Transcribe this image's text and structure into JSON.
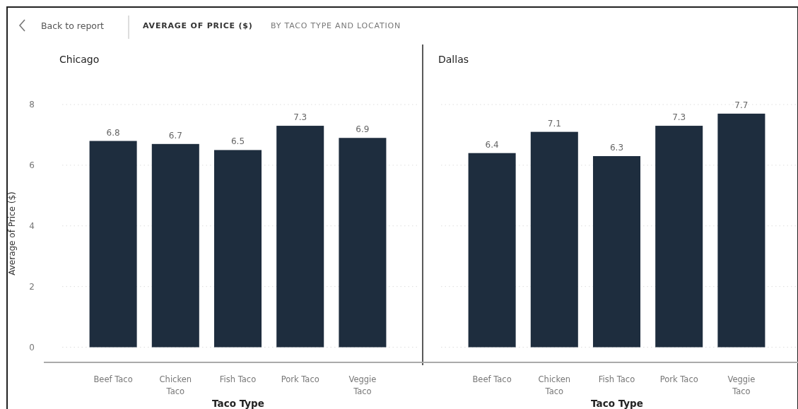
{
  "chart_data": [
    {
      "type": "other",
      "title": "AVERAGE OF PRICE ($)",
      "subtitle": "BY TACO TYPE AND LOCATION",
      "annotations": [
        "Back to report"
      ]
    },
    {
      "type": "bar",
      "title": "Chicago",
      "xlabel": "Taco Type",
      "ylabel": "Average of Price ($)",
      "categories": [
        "Beef Taco",
        "Chicken Taco",
        "Fish Taco",
        "Pork Taco",
        "Veggie Taco"
      ],
      "values": [
        6.8,
        6.7,
        6.5,
        7.3,
        6.9
      ],
      "color": "#1e2d3e",
      "ylim": [
        -0.5,
        8
      ],
      "yticks": [
        0,
        2,
        4,
        6,
        8
      ],
      "grid": "y",
      "data_labels": true
    },
    {
      "type": "bar",
      "title": "Dallas",
      "xlabel": "Taco Type",
      "categories": [
        "Beef Taco",
        "Chicken Taco",
        "Fish Taco",
        "Pork Taco",
        "Veggie Taco"
      ],
      "values": [
        6.4,
        7.1,
        6.3,
        7.3,
        7.7
      ],
      "color": "#1e2d3e",
      "ylim": [
        -0.5,
        8
      ],
      "yticks": [
        0,
        2,
        4,
        6,
        8
      ],
      "grid": "y",
      "data_labels": true,
      "tick_labels": "x"
    }
  ]
}
